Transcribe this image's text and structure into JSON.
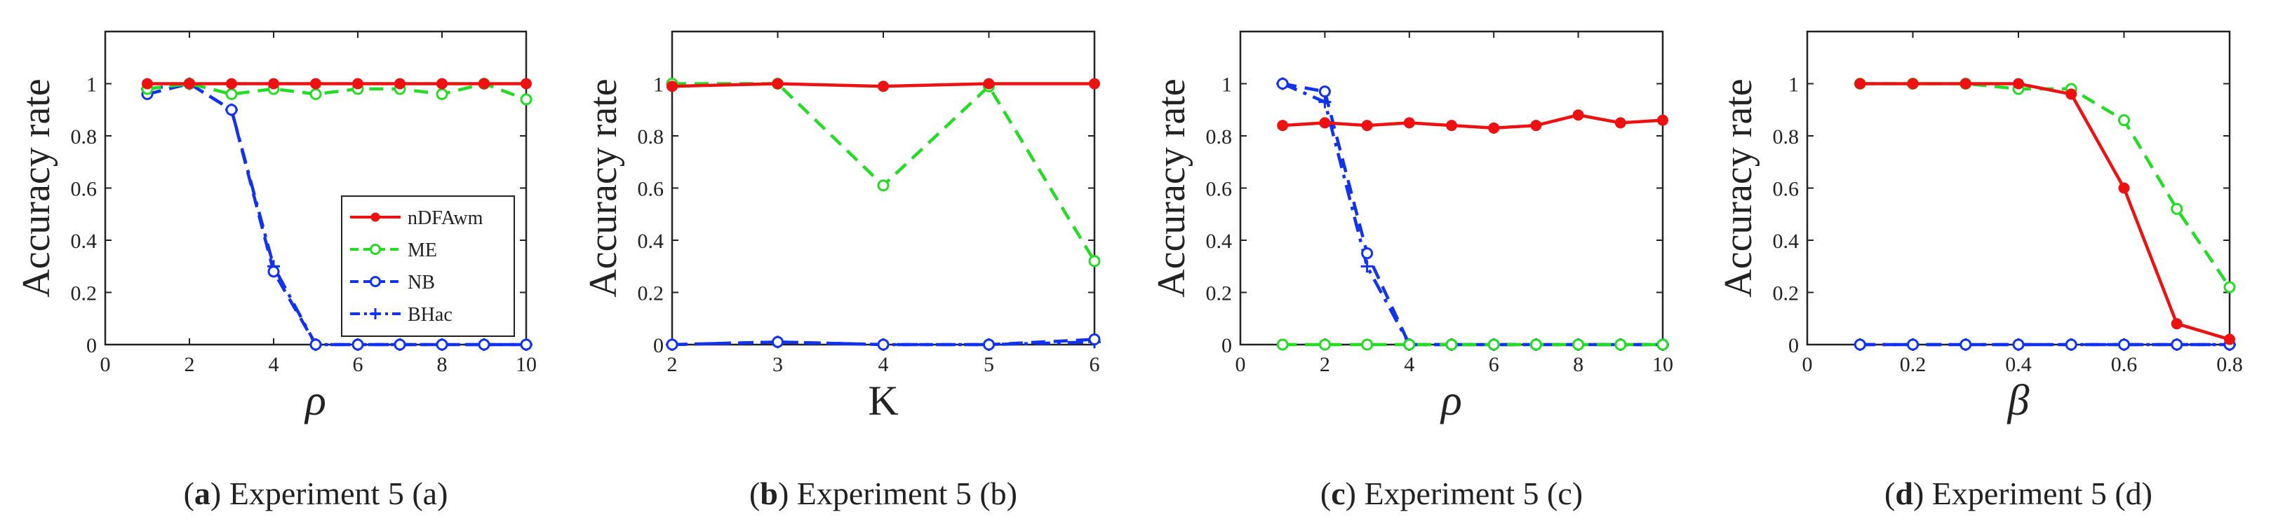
{
  "chart_data": [
    {
      "type": "line",
      "caption": {
        "letter": "a",
        "text": " Experiment 5 (a)"
      },
      "ylabel": "Accuracy rate",
      "xlabel": "ρ",
      "xlim": [
        0,
        10
      ],
      "ylim": [
        0,
        1.2
      ],
      "xticks": [
        0,
        2,
        4,
        6,
        8,
        10
      ],
      "yticks": [
        0,
        0.2,
        0.4,
        0.6,
        0.8,
        1
      ],
      "xtick_labels": [
        "0",
        "2",
        "4",
        "6",
        "8",
        "10"
      ],
      "ytick_labels": [
        "0",
        "0.2",
        "0.4",
        "0.6",
        "0.8",
        "1"
      ],
      "legend": {
        "placement": "bottom-right",
        "entries": [
          "nDFAwm",
          "ME",
          "NB",
          "BHac"
        ]
      },
      "series": [
        {
          "name": "nDFAwm",
          "x": [
            1,
            2,
            3,
            4,
            5,
            6,
            7,
            8,
            9,
            10
          ],
          "values": [
            1,
            1,
            1,
            1,
            1,
            1,
            1,
            1,
            1,
            1
          ]
        },
        {
          "name": "ME",
          "x": [
            1,
            2,
            3,
            4,
            5,
            6,
            7,
            8,
            9,
            10
          ],
          "values": [
            0.98,
            1,
            0.96,
            0.98,
            0.96,
            0.98,
            0.98,
            0.96,
            1,
            0.94
          ]
        },
        {
          "name": "NB",
          "x": [
            1,
            2,
            3,
            4,
            5,
            6,
            7,
            8,
            9,
            10
          ],
          "values": [
            0.96,
            1,
            0.9,
            0.28,
            0,
            0,
            0,
            0,
            0,
            0
          ]
        },
        {
          "name": "BHac",
          "x": [
            1,
            2,
            3,
            4,
            5,
            6,
            7,
            8,
            9,
            10
          ],
          "values": [
            0.98,
            1,
            0.9,
            0.3,
            0,
            0,
            0,
            0,
            0,
            0
          ]
        }
      ]
    },
    {
      "type": "line",
      "caption": {
        "letter": "b",
        "text": " Experiment 5 (b)"
      },
      "ylabel": "Accuracy rate",
      "xlabel": "K",
      "xlim": [
        2,
        6
      ],
      "ylim": [
        0,
        1.2
      ],
      "xticks": [
        2,
        3,
        4,
        5,
        6
      ],
      "yticks": [
        0,
        0.2,
        0.4,
        0.6,
        0.8,
        1
      ],
      "xtick_labels": [
        "2",
        "3",
        "4",
        "5",
        "6"
      ],
      "ytick_labels": [
        "0",
        "0.2",
        "0.4",
        "0.6",
        "0.8",
        "1"
      ],
      "series": [
        {
          "name": "nDFAwm",
          "x": [
            2,
            3,
            4,
            5,
            6
          ],
          "values": [
            0.99,
            1,
            0.99,
            1,
            1
          ]
        },
        {
          "name": "ME",
          "x": [
            2,
            3,
            4,
            5,
            6
          ],
          "values": [
            1,
            1,
            0.61,
            0.99,
            0.32
          ]
        },
        {
          "name": "NB",
          "x": [
            2,
            3,
            4,
            5,
            6
          ],
          "values": [
            0,
            0.01,
            0,
            0,
            0.02
          ]
        },
        {
          "name": "BHac",
          "x": [
            2,
            3,
            4,
            5,
            6
          ],
          "values": [
            0,
            0.01,
            0,
            0,
            0.01
          ]
        }
      ]
    },
    {
      "type": "line",
      "caption": {
        "letter": "c",
        "text": " Experiment 5 (c)"
      },
      "ylabel": "Accuracy rate",
      "xlabel": "ρ",
      "xlim": [
        0,
        10
      ],
      "ylim": [
        0,
        1.2
      ],
      "xticks": [
        0,
        2,
        4,
        6,
        8,
        10
      ],
      "yticks": [
        0,
        0.2,
        0.4,
        0.6,
        0.8,
        1
      ],
      "xtick_labels": [
        "0",
        "2",
        "4",
        "6",
        "8",
        "10"
      ],
      "ytick_labels": [
        "0",
        "0.2",
        "0.4",
        "0.6",
        "0.8",
        "1"
      ],
      "series": [
        {
          "name": "nDFAwm",
          "x": [
            1,
            2,
            3,
            4,
            5,
            6,
            7,
            8,
            9,
            10
          ],
          "values": [
            0.84,
            0.85,
            0.84,
            0.85,
            0.84,
            0.83,
            0.84,
            0.88,
            0.85,
            0.86
          ]
        },
        {
          "name": "ME",
          "x": [
            1,
            2,
            3,
            4,
            5,
            6,
            7,
            8,
            9,
            10
          ],
          "values": [
            0,
            0,
            0,
            0,
            0,
            0,
            0,
            0,
            0,
            0
          ]
        },
        {
          "name": "NB",
          "x": [
            1,
            2,
            3,
            4,
            5,
            6,
            7,
            8,
            9,
            10
          ],
          "values": [
            1,
            0.97,
            0.35,
            0,
            0,
            0,
            0,
            0,
            0,
            0
          ]
        },
        {
          "name": "BHac",
          "x": [
            1,
            2,
            3,
            4,
            5,
            6,
            7,
            8,
            9,
            10
          ],
          "values": [
            1,
            0.93,
            0.3,
            0,
            0,
            0,
            0,
            0,
            0,
            0
          ]
        }
      ]
    },
    {
      "type": "line",
      "caption": {
        "letter": "d",
        "text": " Experiment 5 (d)"
      },
      "ylabel": "Accuracy rate",
      "xlabel": "β",
      "xlim": [
        0,
        0.8
      ],
      "ylim": [
        0,
        1.2
      ],
      "xticks": [
        0,
        0.2,
        0.4,
        0.6,
        0.8
      ],
      "yticks": [
        0,
        0.2,
        0.4,
        0.6,
        0.8,
        1
      ],
      "xtick_labels": [
        "0",
        "0.2",
        "0.4",
        "0.6",
        "0.8"
      ],
      "ytick_labels": [
        "0",
        "0.2",
        "0.4",
        "0.6",
        "0.8",
        "1"
      ],
      "series": [
        {
          "name": "nDFAwm",
          "x": [
            0.1,
            0.2,
            0.3,
            0.4,
            0.5,
            0.6,
            0.7,
            0.8
          ],
          "values": [
            1,
            1,
            1,
            1,
            0.96,
            0.6,
            0.08,
            0.02
          ]
        },
        {
          "name": "ME",
          "x": [
            0.1,
            0.2,
            0.3,
            0.4,
            0.5,
            0.6,
            0.7,
            0.8
          ],
          "values": [
            1,
            1,
            1,
            0.98,
            0.98,
            0.86,
            0.52,
            0.22
          ]
        },
        {
          "name": "NB",
          "x": [
            0.1,
            0.2,
            0.3,
            0.4,
            0.5,
            0.6,
            0.7,
            0.8
          ],
          "values": [
            0,
            0,
            0,
            0,
            0,
            0,
            0,
            0
          ]
        },
        {
          "name": "BHac",
          "x": [
            0.1,
            0.2,
            0.3,
            0.4,
            0.5,
            0.6,
            0.7,
            0.8
          ],
          "values": [
            0,
            0,
            0,
            0,
            0,
            0,
            0,
            0
          ]
        }
      ]
    }
  ],
  "series_styles": {
    "nDFAwm": {
      "color": "#ee1111",
      "dash": "solid",
      "marker": "filled-circle"
    },
    "ME": {
      "color": "#22dd22",
      "dash": "dashed",
      "marker": "open-circle"
    },
    "NB": {
      "color": "#1133ee",
      "dash": "dashed",
      "marker": "open-circle"
    },
    "BHac": {
      "color": "#1133ee",
      "dash": "dashdot",
      "marker": "plus"
    }
  }
}
